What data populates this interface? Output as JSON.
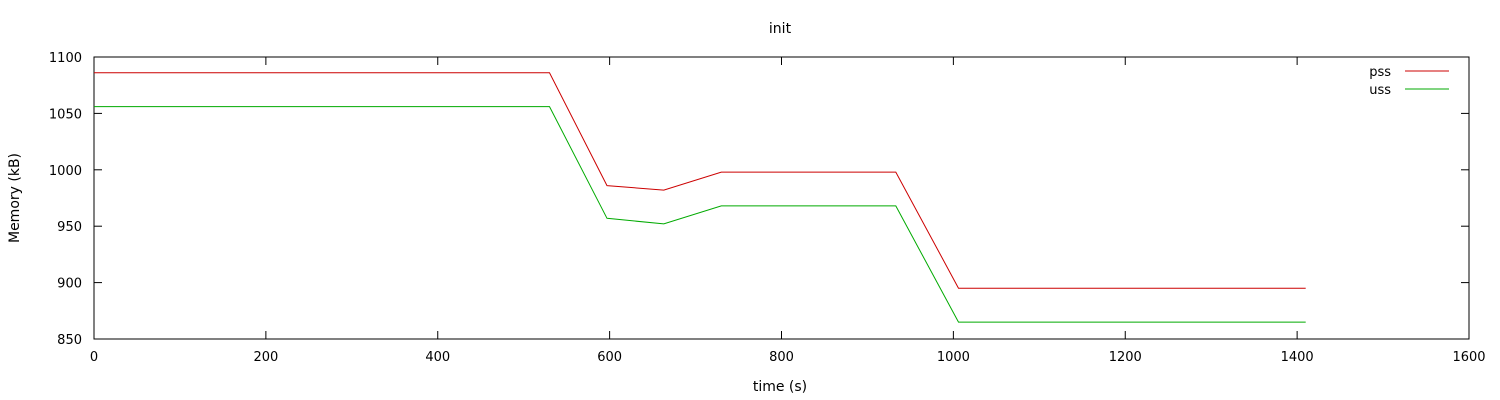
{
  "chart_data": {
    "type": "line",
    "title": "init",
    "xlabel": "time (s)",
    "ylabel": "Memory (kB)",
    "xlim": [
      0,
      1600
    ],
    "ylim": [
      850,
      1100
    ],
    "xticks": [
      0,
      200,
      400,
      600,
      800,
      1000,
      1200,
      1400,
      1600
    ],
    "yticks": [
      850,
      900,
      950,
      1000,
      1050,
      1100
    ],
    "grid": false,
    "legend_position": "top-right",
    "series": [
      {
        "name": "pss",
        "color": "#cc0000",
        "x": [
          0,
          530,
          597,
          663,
          730,
          933,
          1006,
          1410
        ],
        "y": [
          1086,
          1086,
          986,
          982,
          998,
          998,
          895,
          895
        ]
      },
      {
        "name": "uss",
        "color": "#00aa00",
        "x": [
          0,
          530,
          597,
          663,
          730,
          933,
          1006,
          1410
        ],
        "y": [
          1056,
          1056,
          957,
          952,
          968,
          968,
          865,
          865
        ]
      }
    ]
  }
}
